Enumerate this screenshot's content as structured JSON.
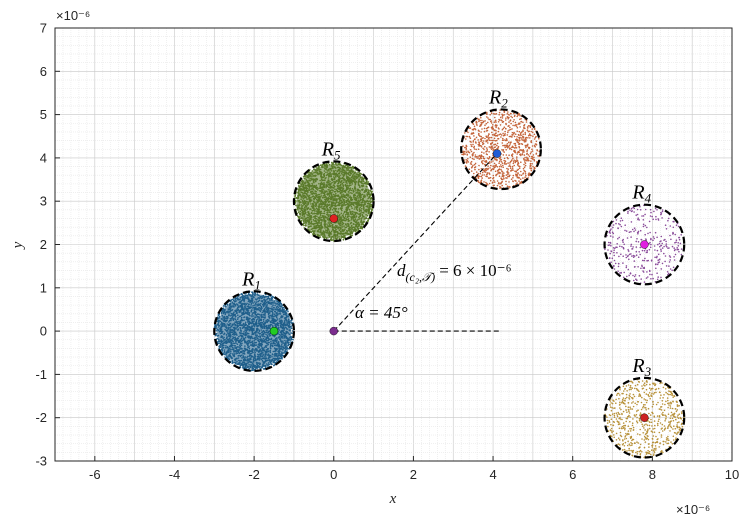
{
  "chart_data": {
    "type": "scatter",
    "xlabel": "x",
    "ylabel": "y",
    "xlim": [
      -7,
      10
    ],
    "ylim": [
      -3,
      7
    ],
    "x_exponent": "×10⁻⁶",
    "y_exponent": "×10⁻⁶",
    "x_ticks": [
      -6,
      -4,
      -2,
      0,
      2,
      4,
      6,
      8,
      10
    ],
    "y_ticks": [
      -3,
      -2,
      -1,
      0,
      1,
      2,
      3,
      4,
      5,
      6,
      7
    ],
    "grid": true,
    "origin_point": {
      "x": 0,
      "y": 0,
      "color": "#7b2d8e"
    },
    "regions": [
      {
        "label": "R",
        "sub": "1",
        "cx": -2,
        "cy": 0,
        "r": 1,
        "color": "#1f5f8b",
        "marker": {
          "x": -1.5,
          "y": 0,
          "color": "#22cc22"
        },
        "density": 2600,
        "inner_bias": 0.35
      },
      {
        "label": "R",
        "sub": "2",
        "cx": 4.2,
        "cy": 4.2,
        "r": 1,
        "color": "#c4643a",
        "marker": {
          "x": 4.1,
          "y": 4.1,
          "color": "#1e5bd6"
        },
        "density": 1000,
        "inner_bias": 0
      },
      {
        "label": "R",
        "sub": "3",
        "cx": 7.8,
        "cy": -2,
        "r": 1,
        "color": "#b8923a",
        "marker": {
          "x": 7.8,
          "y": -2,
          "color": "#cc2222"
        },
        "density": 650,
        "inner_bias": 0
      },
      {
        "label": "R",
        "sub": "4",
        "cx": 7.8,
        "cy": 2,
        "r": 1,
        "color": "#8a4c9a",
        "marker": {
          "x": 7.8,
          "y": 2,
          "color": "#e020e0"
        },
        "density": 350,
        "inner_bias": 0
      },
      {
        "label": "R",
        "sub": "5",
        "cx": 0,
        "cy": 3,
        "r": 1,
        "color": "#5a7a2a",
        "marker": {
          "x": 0,
          "y": 2.6,
          "color": "#dd2222"
        },
        "density": 2600,
        "inner_bias": 0.35
      }
    ],
    "annotations": {
      "distance_label": "d",
      "distance_sub": "(c₂,𝒯)",
      "distance_value": "= 6 × 10⁻⁶",
      "angle_label": "α = 45°",
      "distance_line": {
        "from": [
          0,
          0
        ],
        "to": [
          4.2,
          4.2
        ]
      },
      "reference_line": {
        "from": [
          0,
          0
        ],
        "to": [
          4.2,
          0
        ]
      }
    }
  }
}
